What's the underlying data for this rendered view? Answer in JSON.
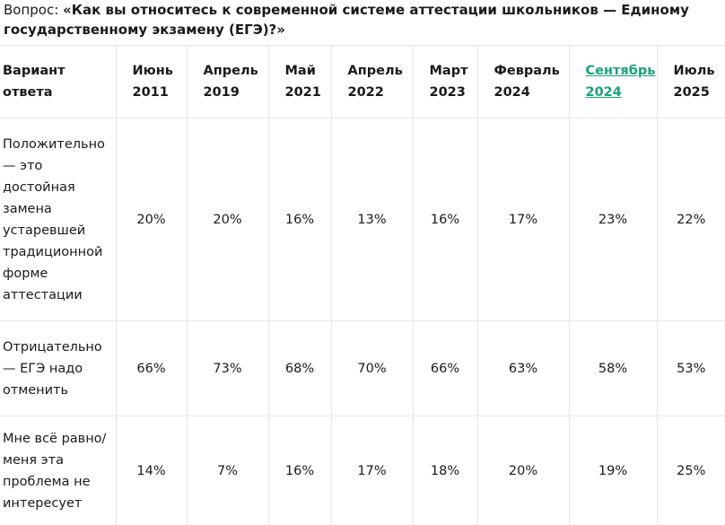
{
  "question": {
    "label": "Вопрос: ",
    "text": "«Как вы относитесь к современной системе аттестации школьников — Единому государственному экзамену (ЕГЭ)?»"
  },
  "table": {
    "header": {
      "answer": "Вариант ответа",
      "periods": [
        {
          "label": "Июнь 2011",
          "link": false
        },
        {
          "label": "Апрель 2019",
          "link": false
        },
        {
          "label": "Май 2021",
          "link": false
        },
        {
          "label": "Апрель 2022",
          "link": false
        },
        {
          "label": "Март 2023",
          "link": false
        },
        {
          "label": "Февраль 2024",
          "link": false
        },
        {
          "label": "Сентябрь 2024",
          "link": true
        },
        {
          "label": "Июль 2025",
          "link": false
        }
      ]
    },
    "rows": [
      {
        "answer": "Положительно — это достойная замена устаревшей традиционной форме аттестации",
        "values": [
          "20%",
          "20%",
          "16%",
          "13%",
          "16%",
          "17%",
          "23%",
          "22%"
        ]
      },
      {
        "answer": "Отрицательно — ЕГЭ надо отменить",
        "values": [
          "66%",
          "73%",
          "68%",
          "70%",
          "66%",
          "63%",
          "58%",
          "53%"
        ]
      },
      {
        "answer": "Мне всё равно/меня эта проблема не интересует",
        "values": [
          "14%",
          "7%",
          "16%",
          "17%",
          "18%",
          "20%",
          "19%",
          "25%"
        ]
      }
    ]
  }
}
